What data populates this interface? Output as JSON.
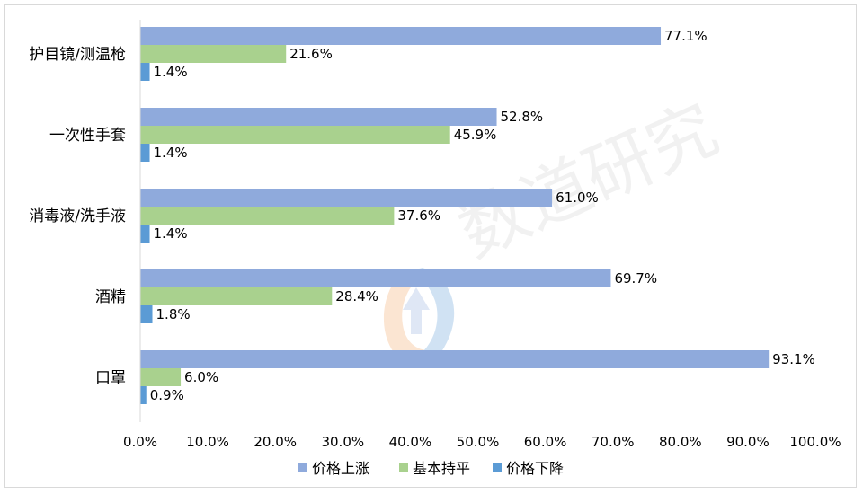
{
  "chart_data": {
    "type": "bar",
    "orientation": "horizontal",
    "categories": [
      "护目镜/测温枪",
      "一次性手套",
      "消毒液/洗手液",
      "酒精",
      "口罩"
    ],
    "series": [
      {
        "name": "价格上涨",
        "color": "#8faadc",
        "values": [
          77.1,
          52.8,
          61.0,
          69.7,
          93.1
        ]
      },
      {
        "name": "基本持平",
        "color": "#a9d18e",
        "values": [
          21.6,
          45.9,
          37.6,
          28.4,
          6.0
        ]
      },
      {
        "name": "价格下降",
        "color": "#5b9bd5",
        "values": [
          1.4,
          1.4,
          1.4,
          1.8,
          0.9
        ]
      }
    ],
    "data_labels": [
      [
        "77.1%",
        "52.8%",
        "61.0%",
        "69.7%",
        "93.1%"
      ],
      [
        "21.6%",
        "45.9%",
        "37.6%",
        "28.4%",
        "6.0%"
      ],
      [
        "1.4%",
        "1.4%",
        "1.4%",
        "1.8%",
        "0.9%"
      ]
    ],
    "x_ticks": [
      "0.0%",
      "10.0%",
      "20.0%",
      "30.0%",
      "40.0%",
      "50.0%",
      "60.0%",
      "70.0%",
      "80.0%",
      "90.0%",
      "100.0%"
    ],
    "xlim": [
      0,
      100
    ],
    "grid": false,
    "legend_position": "bottom"
  },
  "watermark": {
    "text": "数道研究"
  }
}
